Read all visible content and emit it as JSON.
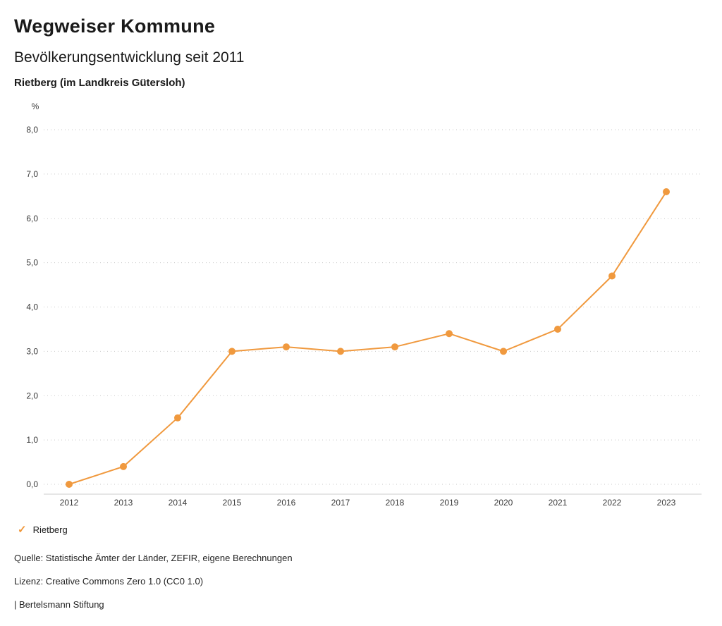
{
  "header": {
    "brand": "Wegweiser Kommune",
    "title": "Bevölkerungsentwicklung seit 2011",
    "region": "Rietberg (im Landkreis Gütersloh)"
  },
  "chart_data": {
    "type": "line",
    "title": "Bevölkerungsentwicklung seit 2011",
    "region": "Rietberg (im Landkreis Gütersloh)",
    "unit": "%",
    "categories": [
      "2012",
      "2013",
      "2014",
      "2015",
      "2016",
      "2017",
      "2018",
      "2019",
      "2020",
      "2021",
      "2022",
      "2023"
    ],
    "series": [
      {
        "name": "Rietberg",
        "color": "#f0993e",
        "values": [
          0.0,
          0.4,
          1.5,
          3.0,
          3.1,
          3.0,
          3.1,
          3.4,
          3.0,
          3.5,
          4.7,
          6.6
        ]
      }
    ],
    "xlabel": "",
    "ylabel": "%",
    "ylim": [
      0.0,
      8.0
    ],
    "ytick_step": 1.0,
    "ytick_labels": [
      "0,0",
      "1,0",
      "2,0",
      "3,0",
      "4,0",
      "5,0",
      "6,0",
      "7,0",
      "8,0"
    ],
    "decimal_separator": ",",
    "grid": true,
    "grid_style": "dotted",
    "legend_position": "bottom"
  },
  "legend": {
    "items": [
      {
        "icon": "✓",
        "label": "Rietberg",
        "color": "#f0993e"
      }
    ]
  },
  "footer": {
    "source": "Quelle: Statistische Ämter der Länder, ZEFIR, eigene Berechnungen",
    "license": "Lizenz: Creative Commons Zero 1.0 (CC0 1.0)",
    "attribution": "| Bertelsmann Stiftung"
  },
  "colors": {
    "accent": "#f0993e",
    "grid": "#c9c9c9",
    "axis": "#cccccc",
    "tick_text": "#3a3a3a"
  }
}
